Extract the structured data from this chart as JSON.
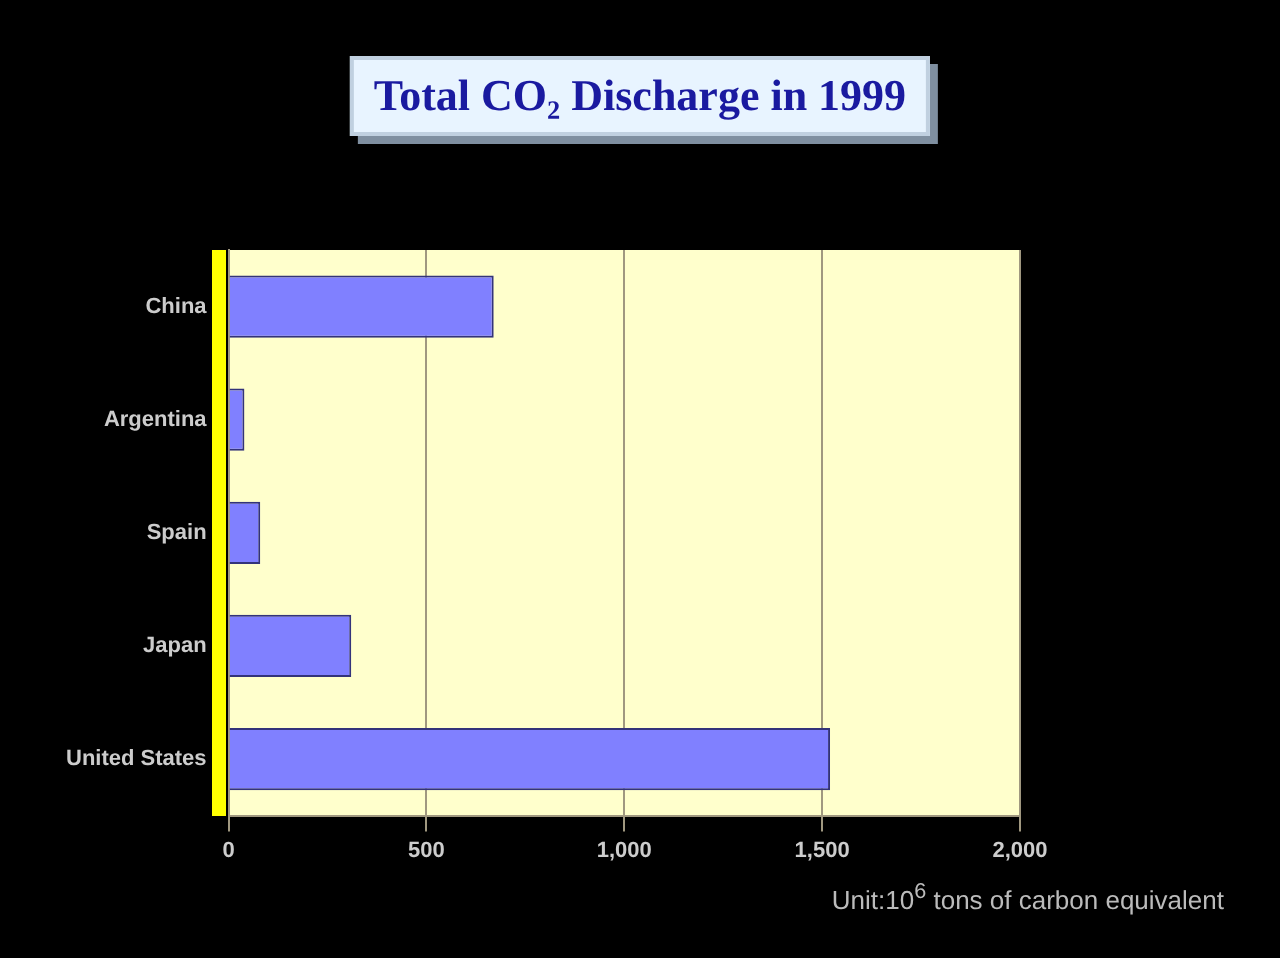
{
  "chart_data": {
    "type": "bar",
    "orientation": "horizontal",
    "title": "Total CO₂ Discharge in 1999",
    "categories": [
      "China",
      "Argentina",
      "Spain",
      "Japan",
      "United States"
    ],
    "values": [
      670,
      40,
      80,
      310,
      1520
    ],
    "color": "#8080ff",
    "xlim": [
      0,
      2000
    ],
    "xticks": [
      0,
      {
        "value": 500,
        "label": "500"
      },
      {
        "value": 1000,
        "label": "1,000"
      },
      {
        "value": 1500,
        "label": "1,500"
      },
      {
        "value": 2000,
        "label": "2,000"
      }
    ],
    "grid": "x",
    "annotations": [
      "Unit:10$^{6}$ tons of carbon equivalent"
    ]
  }
}
